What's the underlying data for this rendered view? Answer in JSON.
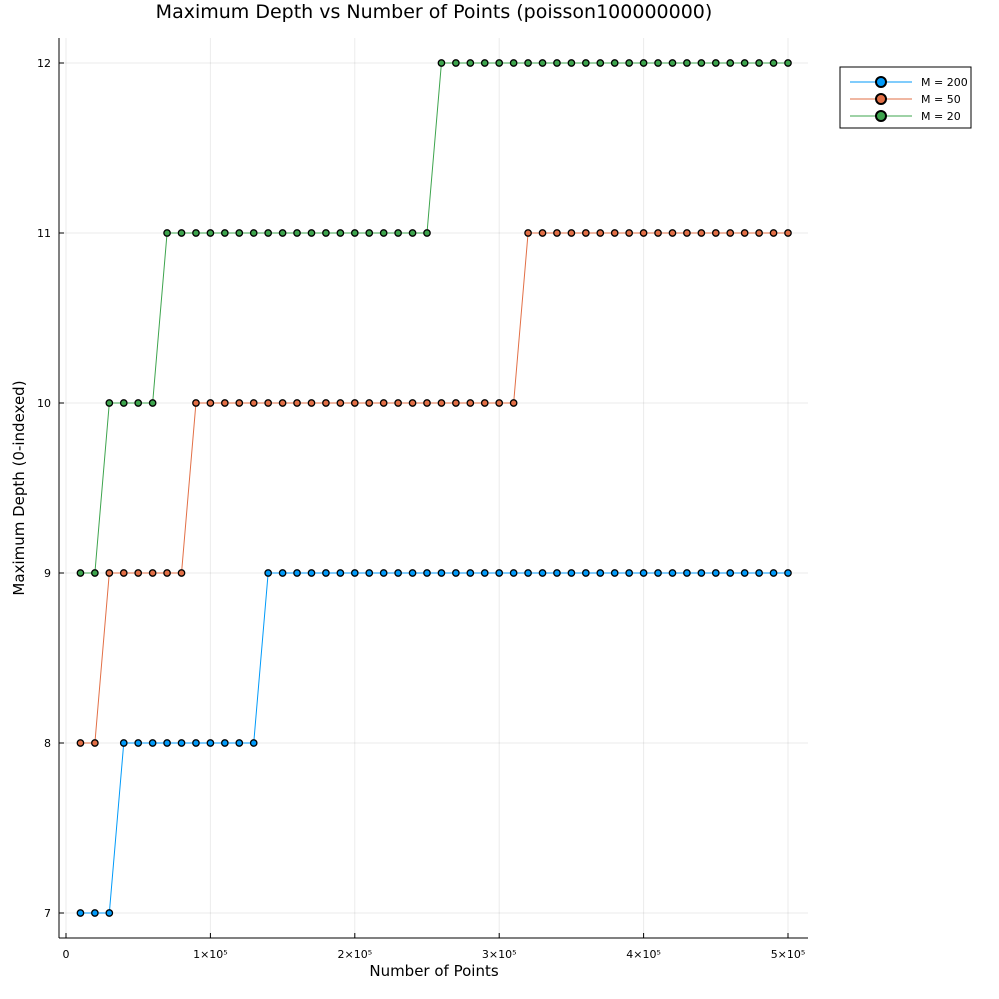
{
  "chart_data": {
    "type": "line",
    "title": "Maximum Depth vs Number of Points (poisson100000000)",
    "xlabel": "Number of Points",
    "ylabel": "Maximum Depth (0-indexed)",
    "xlim": [
      0,
      500000
    ],
    "ylim": [
      7,
      12
    ],
    "grid": true,
    "legend_position": "top-right",
    "x_ticks": [
      {
        "value": 0,
        "label": "0"
      },
      {
        "value": 100000,
        "label": "1×10⁵"
      },
      {
        "value": 200000,
        "label": "2×10⁵"
      },
      {
        "value": 300000,
        "label": "3×10⁵"
      },
      {
        "value": 400000,
        "label": "4×10⁵"
      },
      {
        "value": 500000,
        "label": "5×10⁵"
      }
    ],
    "y_ticks": [
      {
        "value": 7,
        "label": "7"
      },
      {
        "value": 8,
        "label": "8"
      },
      {
        "value": 9,
        "label": "9"
      },
      {
        "value": 10,
        "label": "10"
      },
      {
        "value": 11,
        "label": "11"
      },
      {
        "value": 12,
        "label": "12"
      }
    ],
    "x": [
      10000,
      20000,
      30000,
      40000,
      50000,
      60000,
      70000,
      80000,
      90000,
      100000,
      110000,
      120000,
      130000,
      140000,
      150000,
      160000,
      170000,
      180000,
      190000,
      200000,
      210000,
      220000,
      230000,
      240000,
      250000,
      260000,
      270000,
      280000,
      290000,
      300000,
      310000,
      320000,
      330000,
      340000,
      350000,
      360000,
      370000,
      380000,
      390000,
      400000,
      410000,
      420000,
      430000,
      440000,
      450000,
      460000,
      470000,
      480000,
      490000,
      500000
    ],
    "series": [
      {
        "name": "M = 200",
        "color": "#009af9",
        "values": [
          7,
          7,
          7,
          8,
          8,
          8,
          8,
          8,
          8,
          8,
          8,
          8,
          8,
          9,
          9,
          9,
          9,
          9,
          9,
          9,
          9,
          9,
          9,
          9,
          9,
          9,
          9,
          9,
          9,
          9,
          9,
          9,
          9,
          9,
          9,
          9,
          9,
          9,
          9,
          9,
          9,
          9,
          9,
          9,
          9,
          9,
          9,
          9,
          9,
          9
        ]
      },
      {
        "name": "M = 50",
        "color": "#e26f46",
        "values": [
          8,
          8,
          9,
          9,
          9,
          9,
          9,
          9,
          10,
          10,
          10,
          10,
          10,
          10,
          10,
          10,
          10,
          10,
          10,
          10,
          10,
          10,
          10,
          10,
          10,
          10,
          10,
          10,
          10,
          10,
          10,
          11,
          11,
          11,
          11,
          11,
          11,
          11,
          11,
          11,
          11,
          11,
          11,
          11,
          11,
          11,
          11,
          11,
          11,
          11
        ]
      },
      {
        "name": "M = 20",
        "color": "#3da44d",
        "values": [
          9,
          9,
          10,
          10,
          10,
          10,
          11,
          11,
          11,
          11,
          11,
          11,
          11,
          11,
          11,
          11,
          11,
          11,
          11,
          11,
          11,
          11,
          11,
          11,
          11,
          12,
          12,
          12,
          12,
          12,
          12,
          12,
          12,
          12,
          12,
          12,
          12,
          12,
          12,
          12,
          12,
          12,
          12,
          12,
          12,
          12,
          12,
          12,
          12,
          12
        ]
      }
    ]
  }
}
